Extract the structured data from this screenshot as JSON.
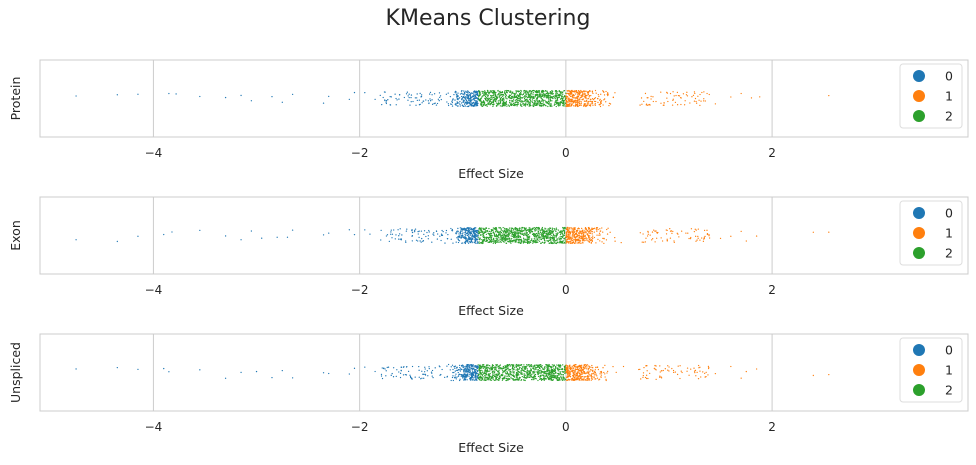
{
  "chart_data": {
    "type": "scatter",
    "title": "KMeans Clustering",
    "xlabel": "Effect Size",
    "xlim": [
      -5.1,
      3.9
    ],
    "xticks": [
      -4,
      -2,
      0,
      2
    ],
    "xtick_labels": [
      "−4",
      "−2",
      "0",
      "2"
    ],
    "grid": true,
    "legend_position": "right",
    "legend": [
      "0",
      "1",
      "2"
    ],
    "colors": {
      "0": "#1f77b4",
      "1": "#ff7f0e",
      "2": "#2ca02c"
    },
    "cluster_ranges": {
      "0": [
        -4.75,
        -0.85
      ],
      "2": [
        -0.85,
        0.0
      ],
      "1": [
        0.0,
        2.6
      ]
    },
    "panels": [
      {
        "ylabel": "Protein",
        "outliers_cluster0": [
          -4.75,
          -4.35,
          -4.15,
          -3.85,
          -3.78,
          -3.55,
          -3.3,
          -3.15,
          -3.05,
          -2.85,
          -2.75,
          -2.65,
          -2.35,
          -2.3,
          -2.1,
          -2.05,
          -1.95,
          -1.85,
          -1.8
        ],
        "outliers_cluster1": [
          1.45,
          1.6,
          1.7,
          1.8,
          1.88,
          2.55
        ]
      },
      {
        "ylabel": "Exon",
        "outliers_cluster0": [
          -4.75,
          -4.35,
          -4.15,
          -3.9,
          -3.82,
          -3.55,
          -3.3,
          -3.15,
          -3.05,
          -2.95,
          -2.8,
          -2.7,
          -2.65,
          -2.35,
          -2.3,
          -2.1,
          -2.05,
          -1.95,
          -1.9
        ],
        "outliers_cluster1": [
          1.35,
          1.5,
          1.6,
          1.7,
          1.75,
          1.85,
          2.4,
          2.55
        ]
      },
      {
        "ylabel": "Unspliced",
        "outliers_cluster0": [
          -4.75,
          -4.35,
          -4.15,
          -3.9,
          -3.85,
          -3.55,
          -3.3,
          -3.15,
          -3.0,
          -2.85,
          -2.75,
          -2.65,
          -2.35,
          -2.3,
          -2.1,
          -2.05,
          -1.95,
          -1.85
        ],
        "outliers_cluster1": [
          1.3,
          1.45,
          1.6,
          1.7,
          1.75,
          1.85,
          2.4,
          2.55
        ]
      }
    ]
  }
}
